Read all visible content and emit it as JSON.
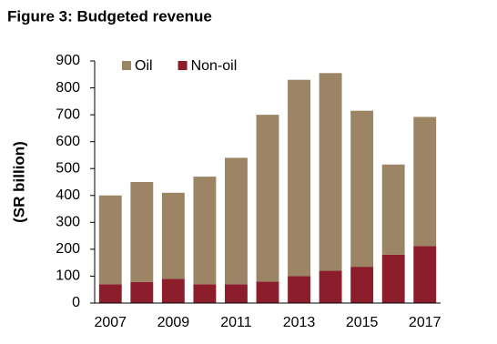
{
  "chart_data": {
    "type": "stacked_bar",
    "title": "Figure 3: Budgeted revenue",
    "y_label": "(SR billion)",
    "categories": [
      "2007",
      null,
      "2009",
      null,
      "2011",
      null,
      "2013",
      null,
      "2015",
      null,
      "2017"
    ],
    "series": [
      {
        "name": "Oil",
        "color": "#9b8565",
        "values": [
          330,
          372,
          320,
          400,
          470,
          620,
          730,
          735,
          580,
          335,
          480
        ]
      },
      {
        "name": "Non-oil",
        "color": "#8c1e2c",
        "values": [
          70,
          78,
          90,
          70,
          70,
          80,
          100,
          120,
          135,
          180,
          212
        ]
      }
    ],
    "ylim": [
      0,
      900
    ],
    "yticks": [
      0,
      100,
      200,
      300,
      400,
      500,
      600,
      700,
      800,
      900
    ],
    "grid": false
  }
}
